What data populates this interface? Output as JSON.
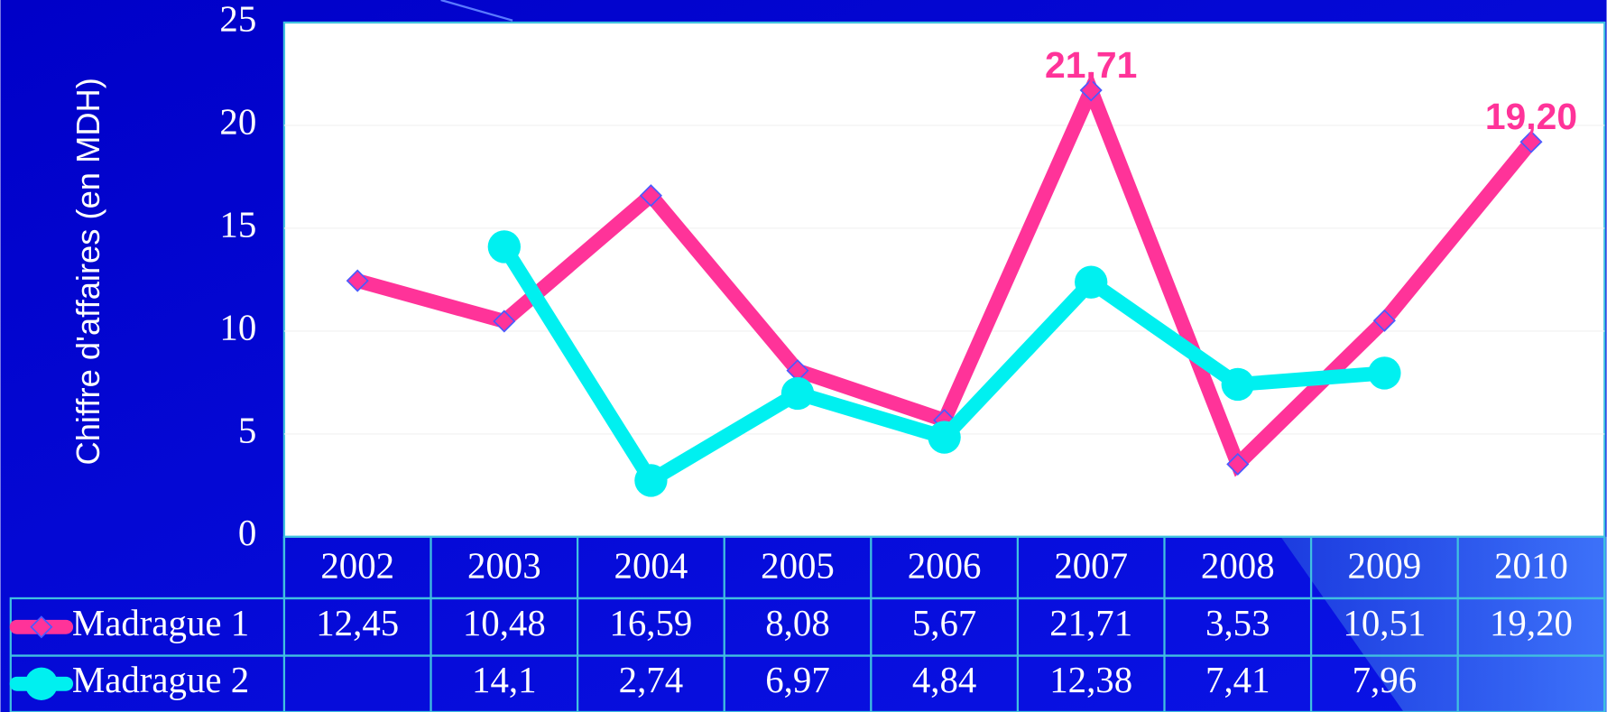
{
  "chart_data": {
    "type": "line",
    "y_label": "Chiffre d'affaires (en MDH)",
    "categories": [
      "2002",
      "2003",
      "2004",
      "2005",
      "2006",
      "2007",
      "2008",
      "2009",
      "2010"
    ],
    "series": [
      {
        "name": "Madrague 1",
        "color": "#ff3399",
        "marker": "diamond",
        "values": [
          12.45,
          10.48,
          16.59,
          8.08,
          5.67,
          21.71,
          3.53,
          10.51,
          19.2
        ],
        "value_labels": [
          "12,45",
          "10,48",
          "16,59",
          "8,08",
          "5,67",
          "21,71",
          "3,53",
          "10,51",
          "19,20"
        ],
        "annotated": [
          5,
          8
        ]
      },
      {
        "name": "Madrague 2",
        "color": "#00f0f0",
        "marker": "circle",
        "values": [
          null,
          14.1,
          2.74,
          6.97,
          4.84,
          12.38,
          7.41,
          7.96,
          null
        ],
        "value_labels": [
          null,
          "14,1",
          "2,74",
          "6,97",
          "4,84",
          "12,38",
          "7,41",
          "7,96",
          null
        ]
      }
    ],
    "ylim": [
      0,
      25
    ],
    "yticks": [
      0,
      5,
      10,
      15,
      20,
      25
    ],
    "grid": true,
    "data_table": true
  }
}
